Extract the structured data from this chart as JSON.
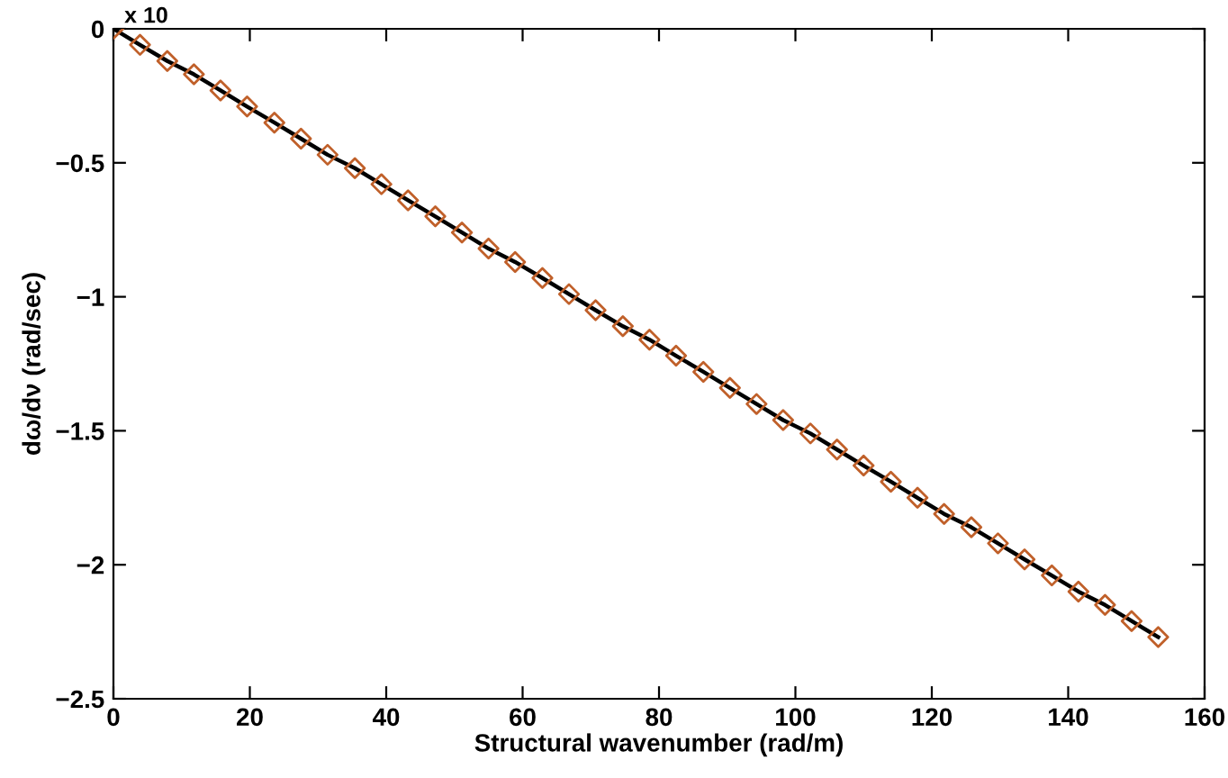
{
  "chart_data": {
    "type": "line",
    "xlabel": "Structural wavenumber (rad/m)",
    "ylabel": "dω/dν (rad/sec)",
    "annotations": [
      "x 10"
    ],
    "x": [
      0,
      3.9,
      7.9,
      11.8,
      15.7,
      19.6,
      23.6,
      27.5,
      31.4,
      35.4,
      39.3,
      43.2,
      47.2,
      51.1,
      55.0,
      58.9,
      62.9,
      66.8,
      70.7,
      74.7,
      78.6,
      82.5,
      86.5,
      90.4,
      94.3,
      98.2,
      102.2,
      106.1,
      110.0,
      114.0,
      117.9,
      121.8,
      125.8,
      129.7,
      133.6,
      137.6,
      141.5,
      145.4,
      149.3,
      153.2
    ],
    "series": [
      {
        "color": "#000000",
        "marker": "none",
        "line_style": "solid",
        "values": [
          0,
          -0.06,
          -0.12,
          -0.17,
          -0.23,
          -0.29,
          -0.35,
          -0.41,
          -0.47,
          -0.52,
          -0.58,
          -0.64,
          -0.7,
          -0.76,
          -0.82,
          -0.87,
          -0.93,
          -0.99,
          -1.05,
          -1.11,
          -1.16,
          -1.22,
          -1.28,
          -1.34,
          -1.4,
          -1.46,
          -1.51,
          -1.57,
          -1.63,
          -1.69,
          -1.75,
          -1.81,
          -1.86,
          -1.92,
          -1.98,
          -2.04,
          -2.1,
          -2.15,
          -2.21,
          -2.27
        ]
      },
      {
        "type": "scatter",
        "color": "#c0602a",
        "marker": "diamond",
        "values": [
          0,
          -0.06,
          -0.12,
          -0.17,
          -0.23,
          -0.29,
          -0.35,
          -0.41,
          -0.47,
          -0.52,
          -0.58,
          -0.64,
          -0.7,
          -0.76,
          -0.82,
          -0.87,
          -0.93,
          -0.99,
          -1.05,
          -1.11,
          -1.16,
          -1.22,
          -1.28,
          -1.34,
          -1.4,
          -1.46,
          -1.51,
          -1.57,
          -1.63,
          -1.69,
          -1.75,
          -1.81,
          -1.86,
          -1.92,
          -1.98,
          -2.04,
          -2.1,
          -2.15,
          -2.21,
          -2.27
        ]
      }
    ],
    "xlim": [
      0,
      160
    ],
    "xticks": [
      0,
      20,
      40,
      60,
      80,
      100,
      120,
      140,
      160
    ],
    "ylim": [
      -2.5,
      0
    ],
    "yticks": [
      {
        "value": -2.5,
        "label": "−2.5"
      },
      {
        "value": -2,
        "label": "−2"
      },
      {
        "value": -1.5,
        "label": "−1.5"
      },
      {
        "value": -1,
        "label": "−1"
      },
      {
        "value": -0.5,
        "label": "−0.5"
      },
      0
    ],
    "grid": false,
    "legend": false
  }
}
